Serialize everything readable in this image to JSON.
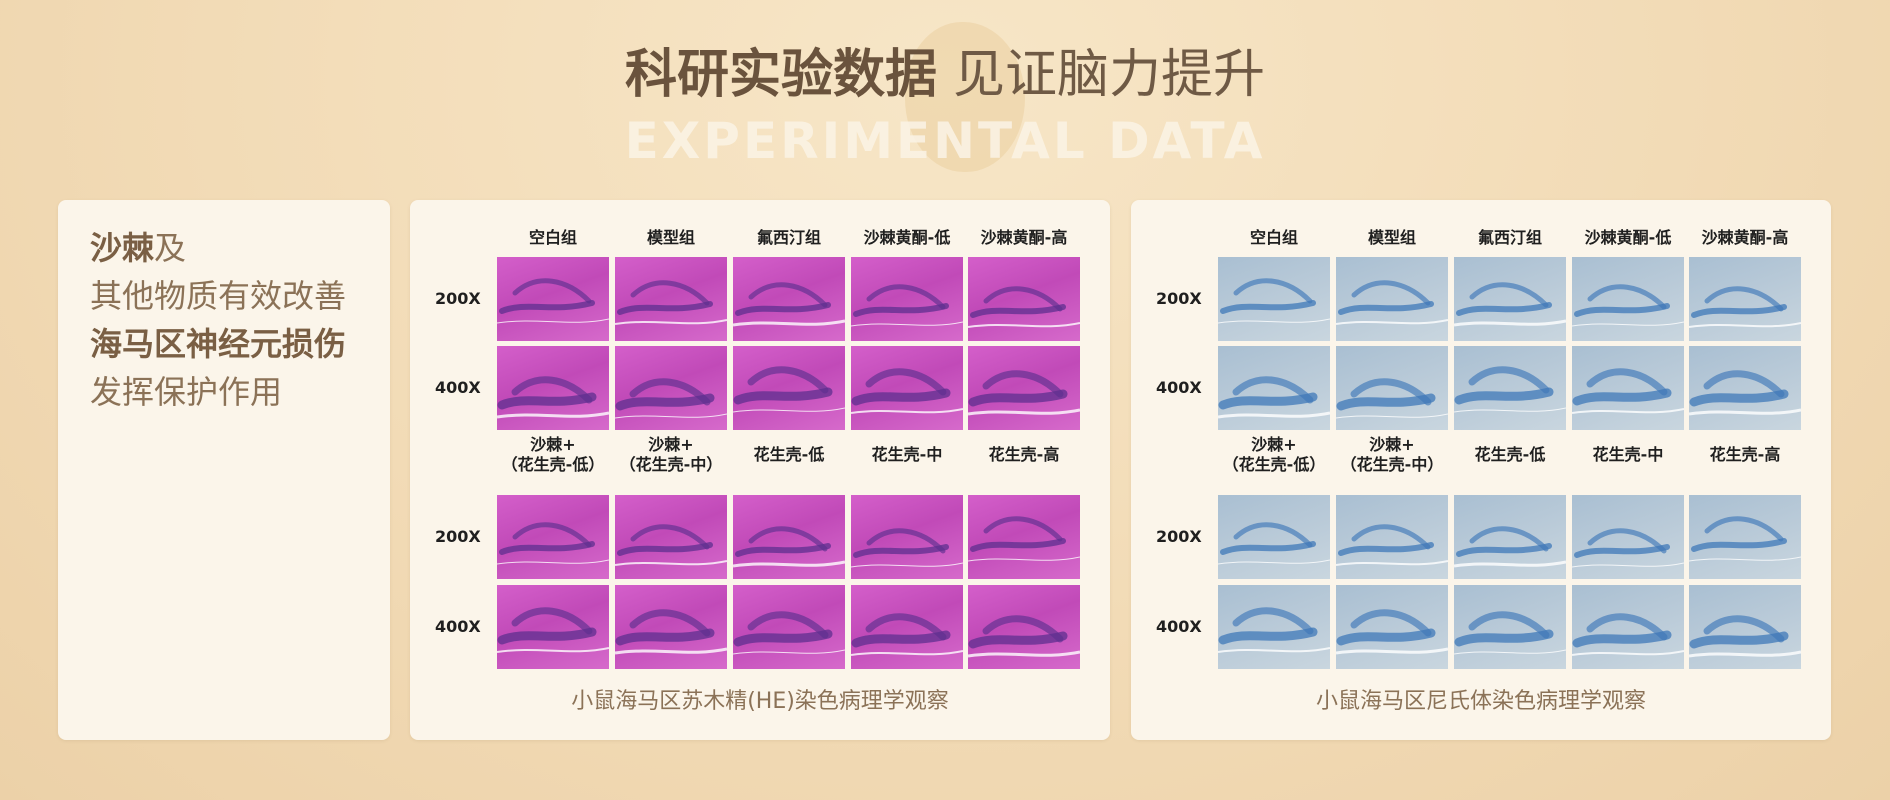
{
  "header": {
    "title_strong": "科研实验数据",
    "title_light": "见证脑力提升",
    "subtitle": "EXPERIMENTAL DATA"
  },
  "claim": {
    "line1_bold": "沙棘",
    "line1_rest": "及",
    "line2": "其他物质有效改善",
    "line3": "海马区神经元损伤",
    "line4": "发挥保护作用"
  },
  "he_panel": {
    "top_columns": [
      "空白组",
      "模型组",
      "氟西汀组",
      "沙棘黄酮-低",
      "沙棘黄酮-高"
    ],
    "bottom_columns": [
      {
        "line1": "沙棘+",
        "line2": "（花生壳-低）"
      },
      {
        "line1": "沙棘+",
        "line2": "（花生壳-中）"
      },
      {
        "line1": "花生壳-低",
        "line2": ""
      },
      {
        "line1": "花生壳-中",
        "line2": ""
      },
      {
        "line1": "花生壳-高",
        "line2": ""
      }
    ],
    "rows": [
      "200X",
      "400X"
    ],
    "caption": "小鼠海马区苏木精(HE)染色病理学观察"
  },
  "ns_panel": {
    "top_columns": [
      "空白组",
      "模型组",
      "氟西汀组",
      "沙棘黄酮-低",
      "沙棘黄酮-高"
    ],
    "bottom_columns": [
      {
        "line1": "沙棘+",
        "line2": "（花生壳-低）"
      },
      {
        "line1": "沙棘+",
        "line2": "（花生壳-中）"
      },
      {
        "line1": "花生壳-低",
        "line2": ""
      },
      {
        "line1": "花生壳-中",
        "line2": ""
      },
      {
        "line1": "花生壳-高",
        "line2": ""
      }
    ],
    "rows": [
      "200X",
      "400X"
    ],
    "caption": "小鼠海马区尼氏体染色病理学观察"
  },
  "colors": {
    "he_stain": "#c14ab8",
    "he_dark": "#5e2f8f",
    "nissl_stain": "#a9bfd2",
    "nissl_dark": "#3f78b8",
    "text_brown": "#8b7257"
  }
}
